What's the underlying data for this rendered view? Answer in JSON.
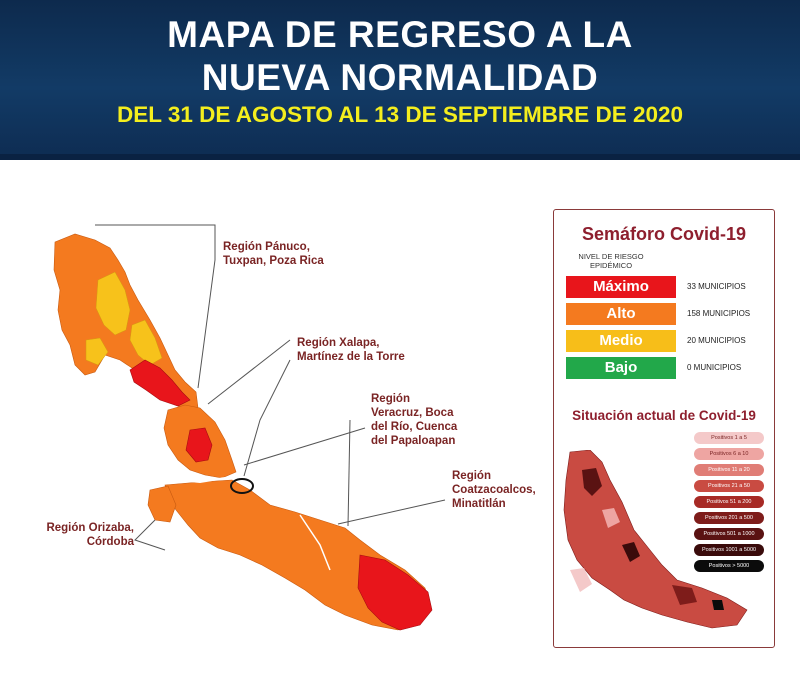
{
  "header": {
    "line1": "MAPA DE REGRESO A LA",
    "line2": "NUEVA NORMALIDAD",
    "line3": "DEL 31 DE AGOSTO AL 13 DE SEPTIEMBRE DE 2020"
  },
  "regions": [
    {
      "label": "Región Pánuco,\nTuxpan, Poza Rica"
    },
    {
      "label": "Región Xalapa,\nMartínez de la Torre"
    },
    {
      "label": "Región\nVeracruz, Boca\ndel Río, Cuenca\ndel Papaloapan"
    },
    {
      "label": "Región\nCoatzacoalcos,\nMinatitlán"
    },
    {
      "label": "Región Orizaba,\nCórdoba"
    }
  ],
  "semaforo": {
    "title": "Semáforo Covid-19",
    "subtitle": "NIVEL DE RIESGO EPIDÉMICO",
    "levels": [
      {
        "label": "Máximo",
        "count": "33 MUNICIPIOS",
        "color": "#e8151b"
      },
      {
        "label": "Alto",
        "count": "158 MUNICIPIOS",
        "color": "#f47a1f"
      },
      {
        "label": "Medio",
        "count": "20 MUNICIPIOS",
        "color": "#f7be19"
      },
      {
        "label": "Bajo",
        "count": "0 MUNICIPIOS",
        "color": "#22a84a"
      }
    ]
  },
  "situacion": {
    "title": "Situación actual de Covid-19",
    "legend": [
      {
        "label": "Positivos 1 a 5",
        "color": "#f4c9c9"
      },
      {
        "label": "Positivos 6 a 10",
        "color": "#eea5a2"
      },
      {
        "label": "Positivos 11 a 20",
        "color": "#e07d76"
      },
      {
        "label": "Positivos 21 a 50",
        "color": "#c94b42"
      },
      {
        "label": "Positivos 51 a 200",
        "color": "#a72a25"
      },
      {
        "label": "Positivos 201 a 500",
        "color": "#7e1c1a"
      },
      {
        "label": "Positivos 501 a 1000",
        "color": "#5a1212"
      },
      {
        "label": "Positivos 1001 a 5000",
        "color": "#3a0b0b"
      },
      {
        "label": "Positivos > 5000",
        "color": "#0b0b0b"
      }
    ]
  }
}
